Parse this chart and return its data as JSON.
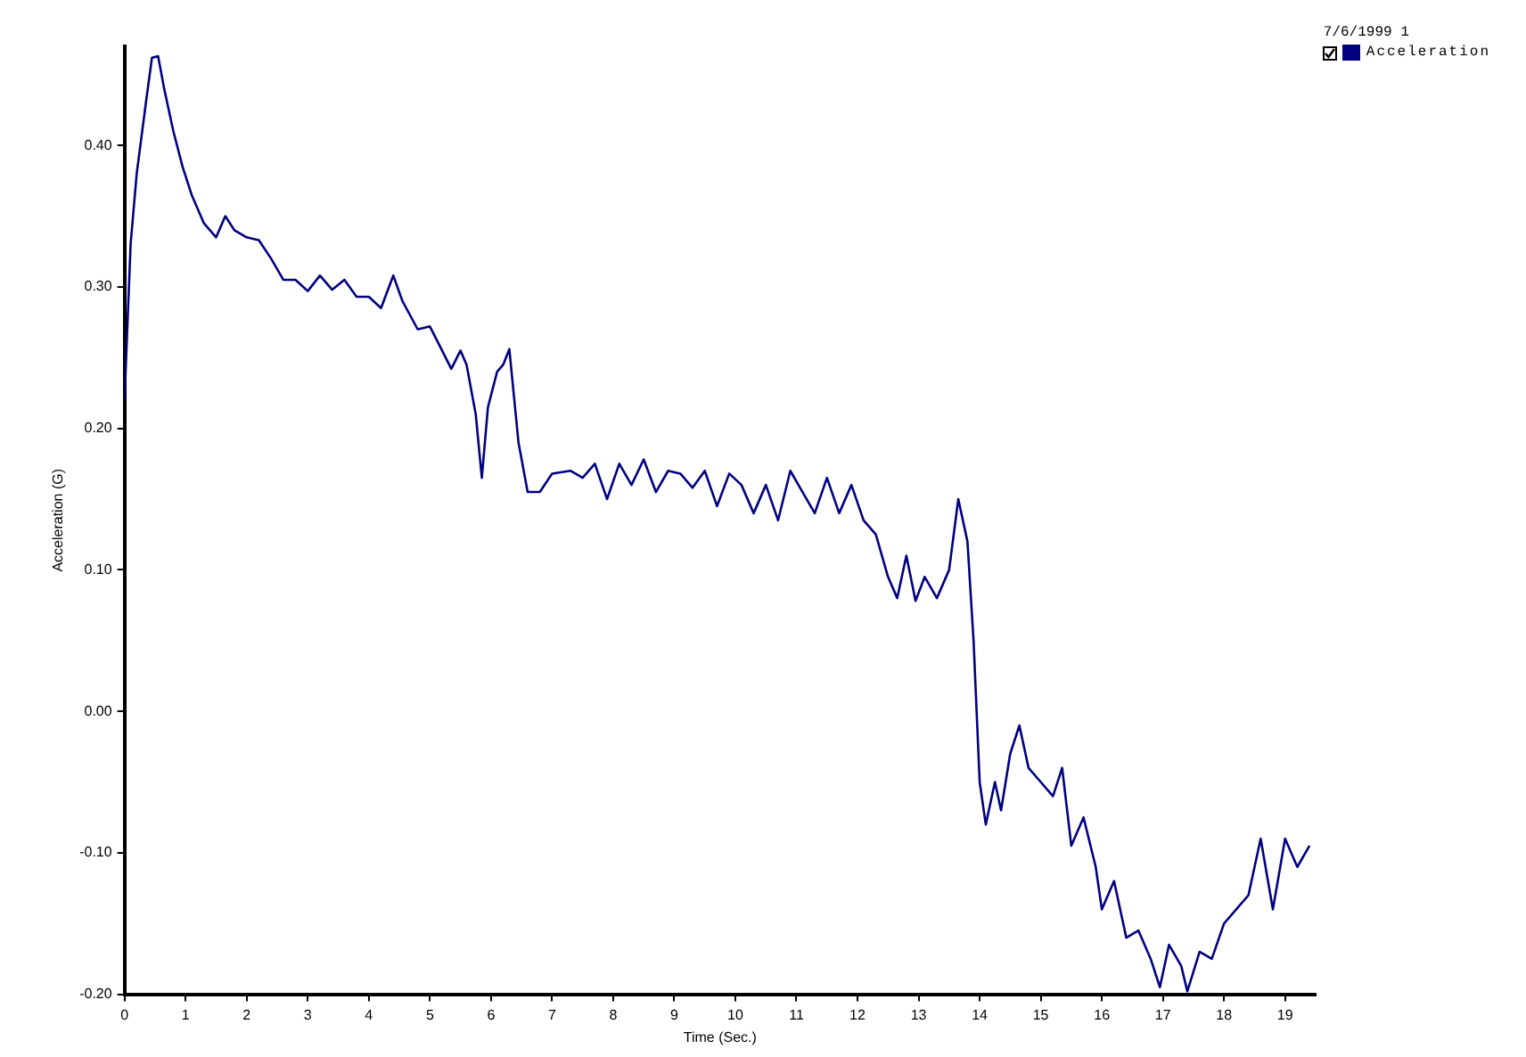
{
  "chart_data": {
    "type": "line",
    "xlabel": "Time (Sec.)",
    "ylabel": "Acceleration (G)",
    "legend_title": "7/6/1999 1",
    "legend": "top right",
    "grid": false,
    "marker": "none",
    "line_style": "solid",
    "xlim": [
      0,
      19.5
    ],
    "xticks": [
      0,
      1,
      2,
      3,
      4,
      5,
      6,
      7,
      8,
      9,
      10,
      11,
      12,
      13,
      14,
      15,
      16,
      17,
      18,
      19
    ],
    "ylim": [
      -0.2,
      0.47
    ],
    "yticks": [
      {
        "value": -0.2,
        "label": "-0.20"
      },
      {
        "value": -0.1,
        "label": "-0.10"
      },
      {
        "value": 0,
        "label": "0.00"
      },
      {
        "value": 0.1,
        "label": "0.10"
      },
      {
        "value": 0.2,
        "label": "0.20"
      },
      {
        "value": 0.3,
        "label": "0.30"
      },
      {
        "value": 0.4,
        "label": "0.40"
      }
    ],
    "series": [
      {
        "name": "Acceleration",
        "color": "#000080",
        "x": [
          0,
          0.1,
          0.2,
          0.35,
          0.45,
          0.55,
          0.65,
          0.8,
          0.95,
          1.1,
          1.3,
          1.5,
          1.65,
          1.8,
          2.0,
          2.2,
          2.4,
          2.6,
          2.8,
          3.0,
          3.2,
          3.4,
          3.6,
          3.8,
          4.0,
          4.2,
          4.4,
          4.55,
          4.8,
          5.0,
          5.2,
          5.35,
          5.5,
          5.6,
          5.75,
          5.85,
          5.95,
          6.1,
          6.2,
          6.3,
          6.45,
          6.6,
          6.8,
          7.0,
          7.3,
          7.5,
          7.7,
          7.9,
          8.1,
          8.3,
          8.5,
          8.7,
          8.9,
          9.1,
          9.3,
          9.5,
          9.7,
          9.9,
          10.1,
          10.3,
          10.5,
          10.7,
          10.9,
          11.1,
          11.3,
          11.5,
          11.7,
          11.9,
          12.1,
          12.3,
          12.5,
          12.65,
          12.8,
          12.95,
          13.1,
          13.3,
          13.5,
          13.65,
          13.8,
          13.9,
          14.0,
          14.1,
          14.25,
          14.35,
          14.5,
          14.65,
          14.8,
          15.0,
          15.2,
          15.35,
          15.5,
          15.7,
          15.9,
          16.0,
          16.2,
          16.4,
          16.6,
          16.8,
          16.95,
          17.1,
          17.3,
          17.4,
          17.6,
          17.8,
          18.0,
          18.2,
          18.4,
          18.6,
          18.8,
          19.0,
          19.2,
          19.4
        ],
        "values": [
          0.22,
          0.33,
          0.38,
          0.43,
          0.462,
          0.463,
          0.44,
          0.41,
          0.385,
          0.365,
          0.345,
          0.335,
          0.35,
          0.34,
          0.335,
          0.333,
          0.32,
          0.305,
          0.305,
          0.297,
          0.308,
          0.298,
          0.305,
          0.293,
          0.293,
          0.285,
          0.308,
          0.29,
          0.27,
          0.272,
          0.255,
          0.242,
          0.255,
          0.245,
          0.21,
          0.165,
          0.215,
          0.24,
          0.245,
          0.256,
          0.19,
          0.155,
          0.155,
          0.168,
          0.17,
          0.165,
          0.175,
          0.15,
          0.175,
          0.16,
          0.178,
          0.155,
          0.17,
          0.168,
          0.158,
          0.17,
          0.145,
          0.168,
          0.16,
          0.14,
          0.16,
          0.135,
          0.17,
          0.155,
          0.14,
          0.165,
          0.14,
          0.16,
          0.135,
          0.125,
          0.095,
          0.08,
          0.11,
          0.078,
          0.095,
          0.08,
          0.1,
          0.15,
          0.12,
          0.05,
          -0.05,
          -0.08,
          -0.05,
          -0.07,
          -0.03,
          -0.01,
          -0.04,
          -0.05,
          -0.06,
          -0.04,
          -0.095,
          -0.075,
          -0.11,
          -0.14,
          -0.12,
          -0.16,
          -0.155,
          -0.175,
          -0.195,
          -0.165,
          -0.18,
          -0.198,
          -0.17,
          -0.175,
          -0.15,
          -0.14,
          -0.13,
          -0.09,
          -0.14,
          -0.09,
          -0.11,
          -0.095
        ]
      }
    ]
  }
}
